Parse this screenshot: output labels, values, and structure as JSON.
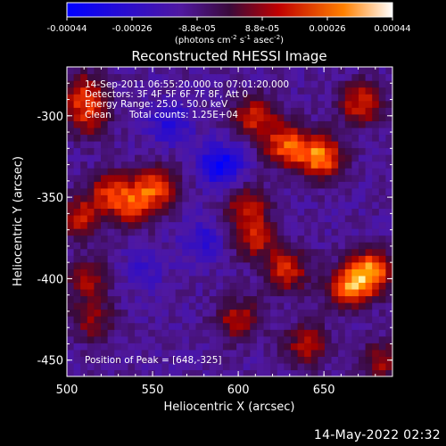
{
  "chart_data": {
    "type": "heatmap",
    "title": "Reconstructed RHESSI Image",
    "xlabel": "Heliocentric X (arcsec)",
    "ylabel": "Heliocentric Y (arcsec)",
    "xlim": [
      500,
      690
    ],
    "ylim": [
      -460,
      -270
    ],
    "x_ticks": [
      500,
      550,
      600,
      650
    ],
    "y_ticks": [
      -300,
      -350,
      -400,
      -450
    ],
    "colorbar": {
      "ticks": [
        "-0.00044",
        "-0.00026",
        "-8.8e-05",
        "8.8e-05",
        "0.00026",
        "0.00044"
      ],
      "range": [
        -0.00044,
        0.00044
      ],
      "unit_text": "(photons cm",
      "unit_exp1": "-2",
      "unit_mid": " s",
      "unit_exp2": "-1",
      "unit_mid2": " asec",
      "unit_exp3": "-2",
      "unit_end": ")"
    },
    "colors": {
      "neg_low": "#0000ff",
      "zero": "#4a1570",
      "mid": "#a00000",
      "high": "#ff6000",
      "peak": "#ffffa0"
    },
    "peak_xy": [
      648,
      -325
    ],
    "hotspots": [
      {
        "x": 648,
        "y": -325,
        "amp": 0.00044
      },
      {
        "x": 628,
        "y": -318,
        "amp": 0.00036
      },
      {
        "x": 672,
        "y": -292,
        "amp": 0.0003
      },
      {
        "x": 610,
        "y": -300,
        "amp": 0.0003
      },
      {
        "x": 605,
        "y": -355,
        "amp": 0.00026
      },
      {
        "x": 552,
        "y": -343,
        "amp": 0.00032
      },
      {
        "x": 540,
        "y": -355,
        "amp": 0.00028
      },
      {
        "x": 525,
        "y": -347,
        "amp": 0.00028
      },
      {
        "x": 507,
        "y": -362,
        "amp": 0.00026
      },
      {
        "x": 512,
        "y": -300,
        "amp": 0.00025
      },
      {
        "x": 510,
        "y": -285,
        "amp": 0.00024
      },
      {
        "x": 678,
        "y": -395,
        "amp": 0.00042
      },
      {
        "x": 665,
        "y": -405,
        "amp": 0.00038
      },
      {
        "x": 628,
        "y": -395,
        "amp": 0.0003
      },
      {
        "x": 610,
        "y": -375,
        "amp": 0.00026
      },
      {
        "x": 600,
        "y": -425,
        "amp": 0.00025
      },
      {
        "x": 640,
        "y": -440,
        "amp": 0.00024
      },
      {
        "x": 685,
        "y": -450,
        "amp": 0.00022
      },
      {
        "x": 512,
        "y": -400,
        "amp": 0.00022
      },
      {
        "x": 515,
        "y": -425,
        "amp": 0.0002
      }
    ],
    "coldspots": [
      {
        "x": 590,
        "y": -330,
        "amp": -0.0003
      },
      {
        "x": 560,
        "y": -305,
        "amp": -0.00018
      },
      {
        "x": 580,
        "y": -375,
        "amp": -0.00015
      },
      {
        "x": 545,
        "y": -395,
        "amp": -0.0001
      }
    ]
  },
  "annotations": {
    "time_range": "14-Sep-2011 06:55:20.000 to 07:01:20.000",
    "detectors": "Detectors: 3F 4F 5F 6F 7F 8F, Att 0",
    "energy_range": "Energy Range: 25.0 - 50.0 keV",
    "method": "Clean",
    "total_counts": "Total counts: 1.25E+04",
    "peak_position": "Position of Peak = [648,-325]"
  },
  "footer": {
    "timestamp": "14-May-2022 02:32"
  }
}
